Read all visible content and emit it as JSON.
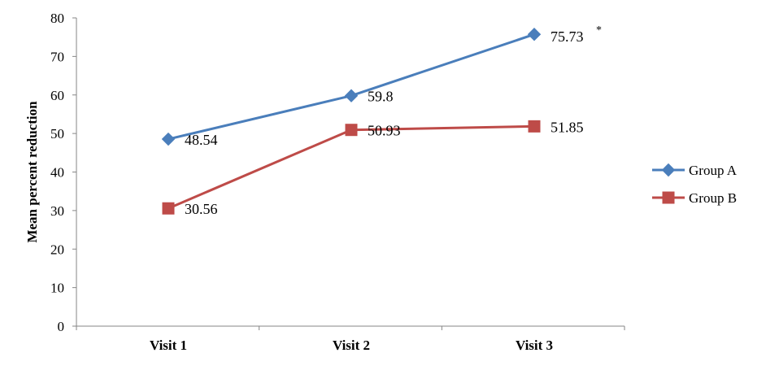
{
  "chart_data": {
    "type": "line",
    "title": "",
    "xlabel": "",
    "ylabel": "Mean percent reduction",
    "categories": [
      "Visit 1",
      "Visit 2",
      "Visit 3"
    ],
    "ylim": [
      0,
      80
    ],
    "yticks": [
      0,
      10,
      20,
      30,
      40,
      50,
      60,
      70,
      80
    ],
    "grid": false,
    "legend_position": "right",
    "series": [
      {
        "name": "Group A",
        "values": [
          48.54,
          59.8,
          75.73
        ],
        "labels": [
          "48.54",
          "59.8",
          "75.73"
        ],
        "color": "#4a7ebb",
        "marker": "diamond"
      },
      {
        "name": "Group B",
        "values": [
          30.56,
          50.93,
          51.85
        ],
        "labels": [
          "30.56",
          "50.93",
          "51.85"
        ],
        "color": "#be4b48",
        "marker": "square"
      }
    ],
    "annotations": [
      {
        "text": "*",
        "series": 0,
        "point": 2
      }
    ]
  }
}
